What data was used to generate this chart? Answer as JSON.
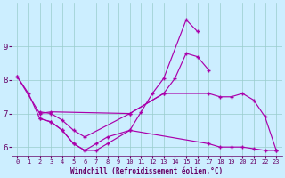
{
  "xlabel": "Windchill (Refroidissement éolien,°C)",
  "bg_color": "#cceeff",
  "line_color": "#aa00aa",
  "grid_color": "#99cccc",
  "xlim": [
    -0.5,
    23.5
  ],
  "ylim": [
    5.75,
    10.3
  ],
  "yticks": [
    6,
    7,
    8,
    9
  ],
  "xticks": [
    0,
    1,
    2,
    3,
    4,
    5,
    6,
    7,
    8,
    9,
    10,
    11,
    12,
    13,
    14,
    15,
    16,
    17,
    18,
    19,
    20,
    21,
    22,
    23
  ],
  "line1_x": [
    0,
    1,
    2,
    3,
    4,
    5,
    6,
    7,
    8,
    10,
    11,
    12,
    13,
    15,
    16
  ],
  "line1_y": [
    8.1,
    7.6,
    6.85,
    6.75,
    6.5,
    6.1,
    5.9,
    5.9,
    6.1,
    6.5,
    7.05,
    7.6,
    8.05,
    9.8,
    9.45
  ],
  "line2_x": [
    0,
    2,
    3,
    10,
    13,
    14,
    15,
    16,
    17
  ],
  "line2_y": [
    8.1,
    7.0,
    7.05,
    7.0,
    7.6,
    8.05,
    8.8,
    8.7,
    8.3
  ],
  "line3_x": [
    2,
    3,
    4,
    5,
    6,
    10,
    13,
    17,
    18,
    19,
    20,
    21,
    22,
    23
  ],
  "line3_y": [
    7.05,
    7.0,
    6.8,
    6.5,
    6.3,
    7.0,
    7.6,
    7.6,
    7.5,
    7.5,
    7.6,
    7.4,
    6.9,
    5.9
  ],
  "line4_x": [
    2,
    3,
    4,
    5,
    6,
    7,
    8,
    10,
    17,
    18,
    19,
    20,
    21,
    22,
    23
  ],
  "line4_y": [
    6.85,
    6.75,
    6.5,
    6.1,
    5.9,
    6.1,
    6.3,
    6.5,
    6.1,
    6.0,
    6.0,
    6.0,
    5.95,
    5.9,
    5.9
  ]
}
